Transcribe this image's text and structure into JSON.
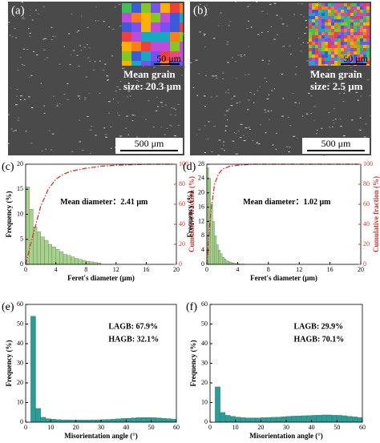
{
  "images": [
    {
      "label": "(a)",
      "caption_lines": [
        "Mean grain",
        "size: 20.3 μm"
      ],
      "inset_scale": "50 μm",
      "scale_bar": "500 μm"
    },
    {
      "label": "(b)",
      "caption_lines": [
        "Mean grain",
        "size: 2.5 μm"
      ],
      "inset_scale": "50 μm",
      "scale_bar": "500 μm"
    }
  ],
  "chart_data": [
    {
      "type": "histogram",
      "label": "(c)",
      "x_label": "Feret's diameter (μm)",
      "y_label": "Frequency (%)",
      "y2_label": "Cumulative fraction (%)",
      "annotation": "Mean diameter：2.41 μm",
      "xlim": [
        0,
        20
      ],
      "xticks": [
        0,
        4,
        8,
        12,
        16,
        20
      ],
      "ylim": [
        0,
        20
      ],
      "yticks": [
        0,
        5,
        10,
        15,
        20
      ],
      "y2lim": [
        0,
        100
      ],
      "y2ticks": [
        0,
        20,
        40,
        60,
        80,
        100
      ],
      "bins": [
        0,
        0.5,
        1,
        1.5,
        2,
        2.5,
        3,
        3.5,
        4,
        4.5,
        5,
        5.5,
        6,
        6.5,
        7,
        7.5,
        8,
        8.5,
        9,
        9.5,
        10
      ],
      "series": [
        {
          "color": "#a9d18e",
          "values": [
            15.5,
            11,
            7.5,
            6.5,
            5.5,
            4.8,
            4,
            3.5,
            3,
            2.5,
            2,
            1.8,
            1.5,
            1.2,
            1,
            0.8,
            0.6,
            0.5,
            0.4,
            0.3
          ]
        },
        {
          "color": "#e0302a",
          "axis": "y2",
          "style": "dash-dot",
          "x": [
            0,
            0.5,
            1,
            2,
            3,
            4,
            5,
            6,
            8,
            10,
            12,
            14,
            16,
            18,
            20
          ],
          "values": [
            0,
            15,
            30,
            58,
            75,
            85,
            90,
            93,
            96,
            98,
            99,
            99.5,
            100,
            100,
            100
          ]
        }
      ]
    },
    {
      "type": "histogram",
      "label": "(d)",
      "x_label": "Feret's diameter (μm)",
      "y_label": "Frequency (%)",
      "y2_label": "Cumulative fraction (%)",
      "annotation": "Mean diameter：1.02 μm",
      "xlim": [
        0,
        20
      ],
      "xticks": [
        0,
        4,
        8,
        12,
        16,
        20
      ],
      "ylim": [
        0,
        28
      ],
      "yticks": [
        0,
        4,
        8,
        12,
        16,
        20,
        24,
        28
      ],
      "y2lim": [
        0,
        100
      ],
      "y2ticks": [
        0,
        20,
        40,
        60,
        80,
        100
      ],
      "bins": [
        0,
        0.25,
        0.5,
        0.75,
        1,
        1.25,
        1.5,
        1.75,
        2,
        2.25,
        2.5,
        2.75,
        3,
        3.25,
        3.5,
        3.75,
        4,
        4.25,
        4.5,
        4.75,
        5
      ],
      "series": [
        {
          "color": "#a9d18e",
          "values": [
            27,
            24,
            17,
            12,
            8,
            5.5,
            4,
            3,
            2,
            1.5,
            1,
            0.8,
            0.6,
            0.4,
            0.3,
            0.2,
            0.15,
            0.1,
            0.1,
            0.05
          ]
        },
        {
          "color": "#e0302a",
          "axis": "y2",
          "style": "dash-dot",
          "x": [
            0,
            0.25,
            0.5,
            1,
            1.5,
            2,
            3,
            4,
            6,
            8,
            20
          ],
          "values": [
            0,
            27,
            51,
            80,
            90,
            95,
            98,
            99,
            100,
            100,
            100
          ]
        }
      ]
    },
    {
      "type": "histogram",
      "label": "(e)",
      "x_label": "Misorientation angle (°)",
      "y_label": "Frequency (%)",
      "annotation_lines": [
        "LAGB: 67.9%",
        "HAGB: 32.1%"
      ],
      "xlim": [
        0,
        60
      ],
      "xticks": [
        0,
        10,
        20,
        30,
        40,
        50,
        60
      ],
      "ylim": [
        0,
        60
      ],
      "yticks": [
        0,
        10,
        20,
        30,
        40,
        50,
        60
      ],
      "bins": [
        2,
        4,
        6,
        8,
        10,
        12,
        14,
        16,
        18,
        20,
        22,
        24,
        26,
        28,
        30,
        32,
        34,
        36,
        38,
        40,
        42,
        44,
        46,
        48,
        50,
        52,
        54,
        56,
        58,
        60
      ],
      "series": [
        {
          "color": "#2a9d9b",
          "values": [
            54,
            7,
            2.5,
            1.8,
            1.5,
            1.3,
            1.2,
            1.2,
            1.1,
            1.1,
            1.1,
            1.1,
            1.2,
            1.2,
            1.3,
            1.4,
            1.5,
            1.7,
            1.9,
            2,
            2.2,
            2.3,
            2.4,
            2.4,
            2.3,
            2.2,
            2,
            1.8,
            1.6
          ]
        }
      ]
    },
    {
      "type": "histogram",
      "label": "(f)",
      "x_label": "Misorientation angle (°)",
      "y_label": "Frequency (%)",
      "annotation_lines": [
        "LAGB: 29.9%",
        "HAGB: 70.1%"
      ],
      "xlim": [
        0,
        60
      ],
      "xticks": [
        0,
        10,
        20,
        30,
        40,
        50,
        60
      ],
      "ylim": [
        0,
        60
      ],
      "yticks": [
        0,
        10,
        20,
        30,
        40,
        50,
        60
      ],
      "bins": [
        2,
        4,
        6,
        8,
        10,
        12,
        14,
        16,
        18,
        20,
        22,
        24,
        26,
        28,
        30,
        32,
        34,
        36,
        38,
        40,
        42,
        44,
        46,
        48,
        50,
        52,
        54,
        56,
        58,
        60
      ],
      "series": [
        {
          "color": "#2a9d9b",
          "values": [
            18,
            5,
            3.5,
            3,
            2.6,
            2.3,
            2.2,
            2.2,
            2.2,
            2.3,
            2.4,
            2.5,
            2.6,
            2.8,
            3,
            3.1,
            3.2,
            3.3,
            3.4,
            3.5,
            3.6,
            3.7,
            3.7,
            3.6,
            3.5,
            3.3,
            3,
            2.7,
            2.4
          ]
        }
      ]
    }
  ]
}
